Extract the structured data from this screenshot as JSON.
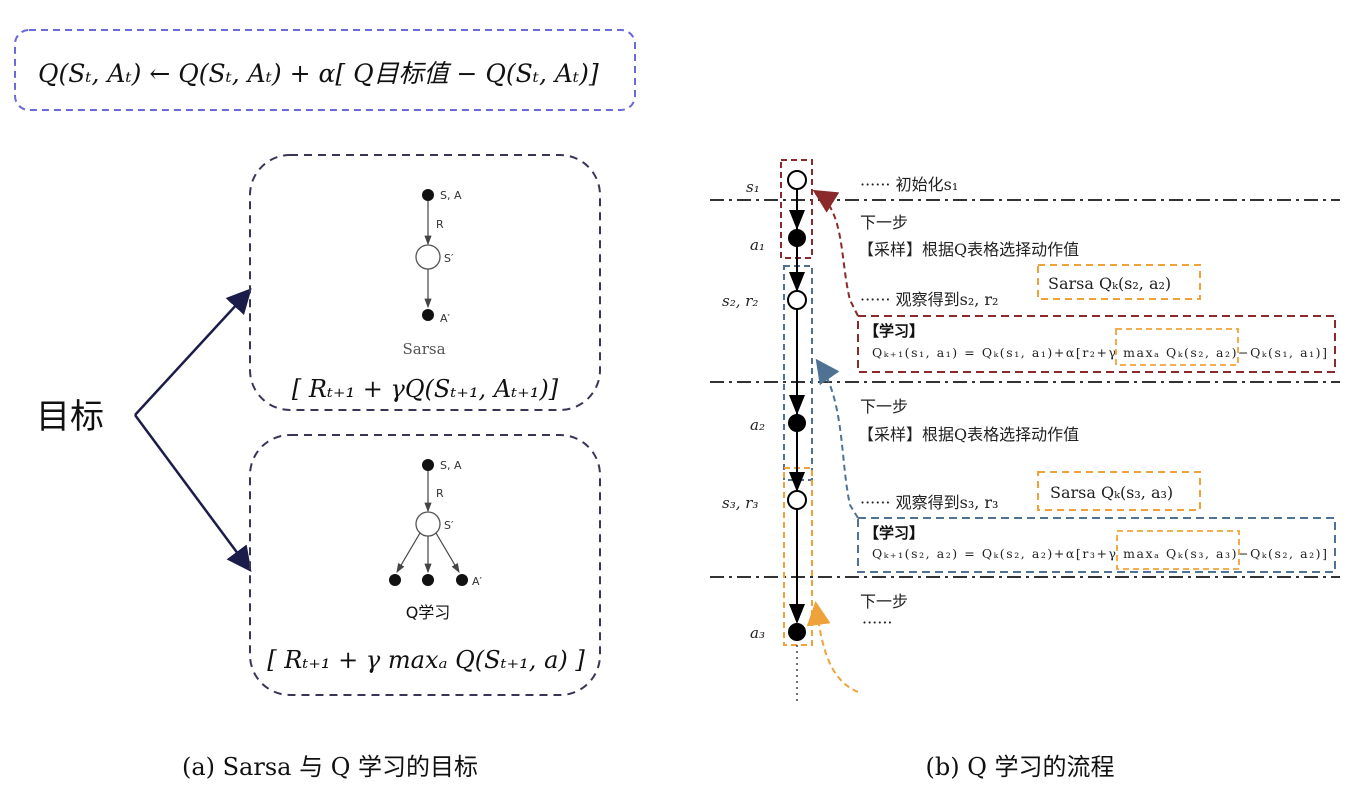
{
  "colors": {
    "top_box": "#6a6ad8",
    "goal_box": "#3a3556",
    "arrow": "#1c1c4a",
    "red": "#8b2a2a",
    "blue": "#4f7294",
    "orange": "#f0a23a",
    "dashdot": "#333333"
  },
  "left": {
    "update_rule": "Q(Sₜ, Aₜ) ← Q(Sₜ, Aₜ) + α[  Q目标值  − Q(Sₜ, Aₜ)]",
    "goal_label": "目标",
    "sarsa": {
      "node_sa": "S, A",
      "edge_r": "R",
      "node_s2": "S′",
      "node_a2": "A′",
      "name": "Sarsa",
      "target": "[ Rₜ₊₁ + γQ(Sₜ₊₁, Aₜ₊₁)]"
    },
    "qlearning": {
      "node_sa": "S, A",
      "edge_r": "R",
      "node_s2": "S′",
      "node_a2": "A′",
      "name": "Q学习",
      "target": "[ Rₜ₊₁ + γ maxₐ Q(Sₜ₊₁, a) ]"
    },
    "caption": "(a) Sarsa 与 Q 学习的目标"
  },
  "right": {
    "states": [
      "s₁",
      "a₁",
      "s₂, r₂",
      "a₂",
      "s₃, r₃",
      "a₃"
    ],
    "init": "······ 初始化s₁",
    "step1": {
      "next": "下一步",
      "sample": "【采样】根据Q表格选择动作值",
      "observe": "······ 观察得到s₂, r₂",
      "sarsa": "Sarsa  Qₖ(s₂, a₂)",
      "learn": "【学习】",
      "formula": "Qₖ₊₁(s₁, a₁) = Qₖ(s₁, a₁)+α[r₂+γ maxₐ Qₖ(s₂, a₂)−Qₖ(s₁, a₁)]"
    },
    "step2": {
      "next": "下一步",
      "sample": "【采样】根据Q表格选择动作值",
      "observe": "······ 观察得到s₃, r₃",
      "sarsa": "Sarsa Qₖ(s₃, a₃)",
      "learn": "【学习】",
      "formula": "Qₖ₊₁(s₂, a₂) = Qₖ(s₂, a₂)+α[r₃+γ maxₐ Qₖ(s₃, a₃)−Qₖ(s₂, a₂)]"
    },
    "step3": {
      "next": "下一步",
      "ellipsis": "······"
    },
    "caption": "(b) Q 学习的流程"
  }
}
